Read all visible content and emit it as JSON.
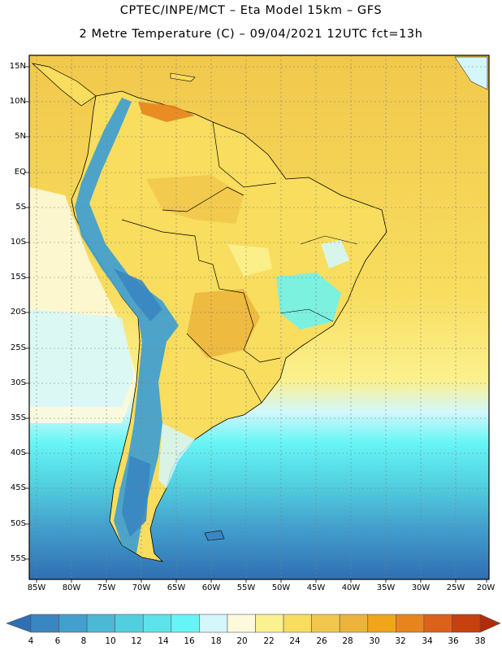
{
  "header": {
    "line1": "CPTEC/INPE/MCT –  Eta Model 15km – GFS",
    "line2": "2 Metre Temperature (C) – 09/04/2021 12UTC fct=13h"
  },
  "axes": {
    "lat_labels": [
      "15N",
      "10N",
      "5N",
      "EQ",
      "5S",
      "10S",
      "15S",
      "20S",
      "25S",
      "30S",
      "35S",
      "40S",
      "45S",
      "50S",
      "55S"
    ],
    "lon_labels": [
      "85W",
      "80W",
      "75W",
      "70W",
      "65W",
      "60W",
      "55W",
      "50W",
      "45W",
      "40W",
      "35W",
      "30W",
      "25W",
      "20W"
    ]
  },
  "colorbar": {
    "values": [
      "4",
      "6",
      "8",
      "10",
      "12",
      "14",
      "16",
      "18",
      "20",
      "22",
      "24",
      "26",
      "28",
      "30",
      "32",
      "34",
      "36",
      "38"
    ],
    "colors": [
      "#2f6fb4",
      "#3a86c2",
      "#43a0cd",
      "#4bb8d6",
      "#52cfdf",
      "#5ce3ea",
      "#66f5f6",
      "#d3f7fb",
      "#fdf9dc",
      "#fbf18e",
      "#f8dd5e",
      "#f1c84c",
      "#ecb43a",
      "#f0a51a",
      "#e7841c",
      "#dc611a",
      "#c8400e",
      "#b02c0a"
    ]
  },
  "colors": {
    "ocean_warm": "#f1c84c",
    "ocean_hot": "#ecb43a",
    "ocean_cool": "#66f5f6",
    "ocean_cold": "#3a86c2",
    "land_main": "#f8dd5e",
    "andes": "#43a0cd",
    "border": "#000000"
  }
}
